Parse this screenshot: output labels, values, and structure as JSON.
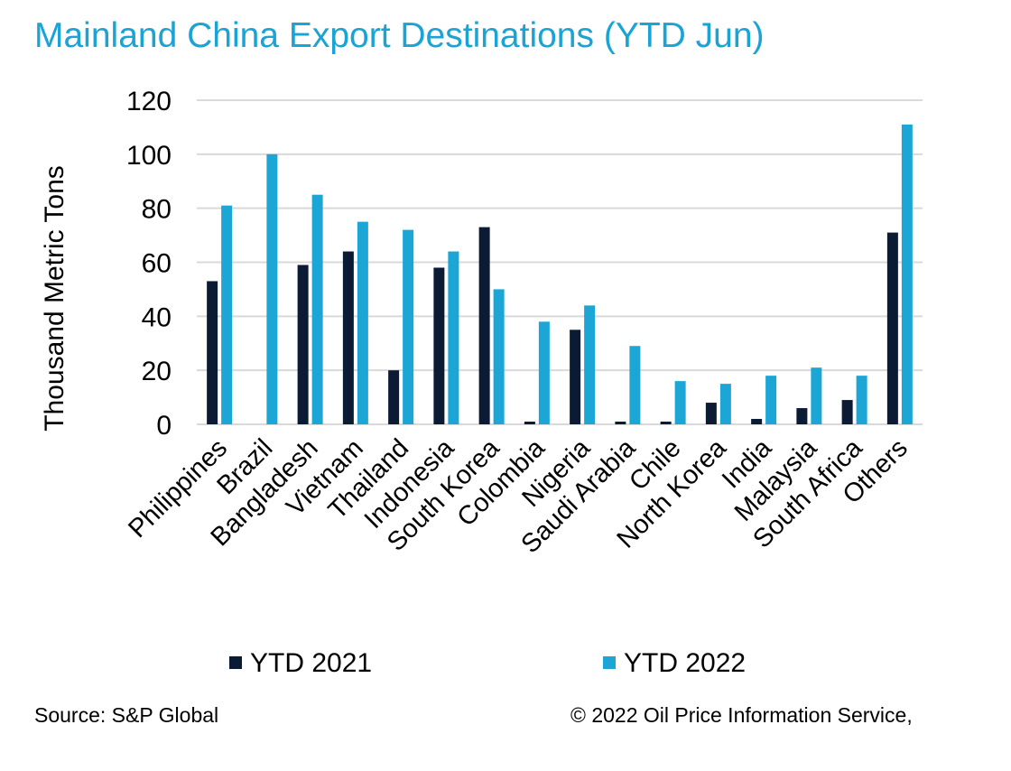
{
  "colors": {
    "title": "#1aa3d5",
    "series_2021": "#0c1b34",
    "series_2022": "#1ca6d6",
    "grid": "#d9d9d9"
  },
  "title": "Mainland China Export Destinations (YTD Jun)",
  "footer": {
    "source": "Source: S&P Global",
    "copyright": "© 2022 Oil Price Information Service,"
  },
  "chart_data": {
    "type": "bar",
    "title": "Mainland China Export Destinations (YTD Jun)",
    "xlabel": "",
    "ylabel": "Thousand Metric Tons",
    "ylim": [
      0,
      120
    ],
    "yticks": [
      0,
      20,
      40,
      60,
      80,
      100,
      120
    ],
    "grid": true,
    "legend_position": "bottom",
    "categories": [
      "Philippines",
      "Brazil",
      "Bangladesh",
      "Vietnam",
      "Thailand",
      "Indonesia",
      "South Korea",
      "Colombia",
      "Nigeria",
      "Saudi Arabia",
      "Chile",
      "North Korea",
      "India",
      "Malaysia",
      "South Africa",
      "Others"
    ],
    "series": [
      {
        "name": "YTD 2021",
        "values": [
          53,
          0,
          59,
          64,
          20,
          58,
          73,
          1,
          35,
          1,
          1,
          8,
          2,
          6,
          9,
          71
        ]
      },
      {
        "name": "YTD 2022",
        "values": [
          81,
          100,
          85,
          75,
          72,
          64,
          50,
          38,
          44,
          29,
          16,
          15,
          18,
          21,
          18,
          111
        ]
      }
    ]
  }
}
